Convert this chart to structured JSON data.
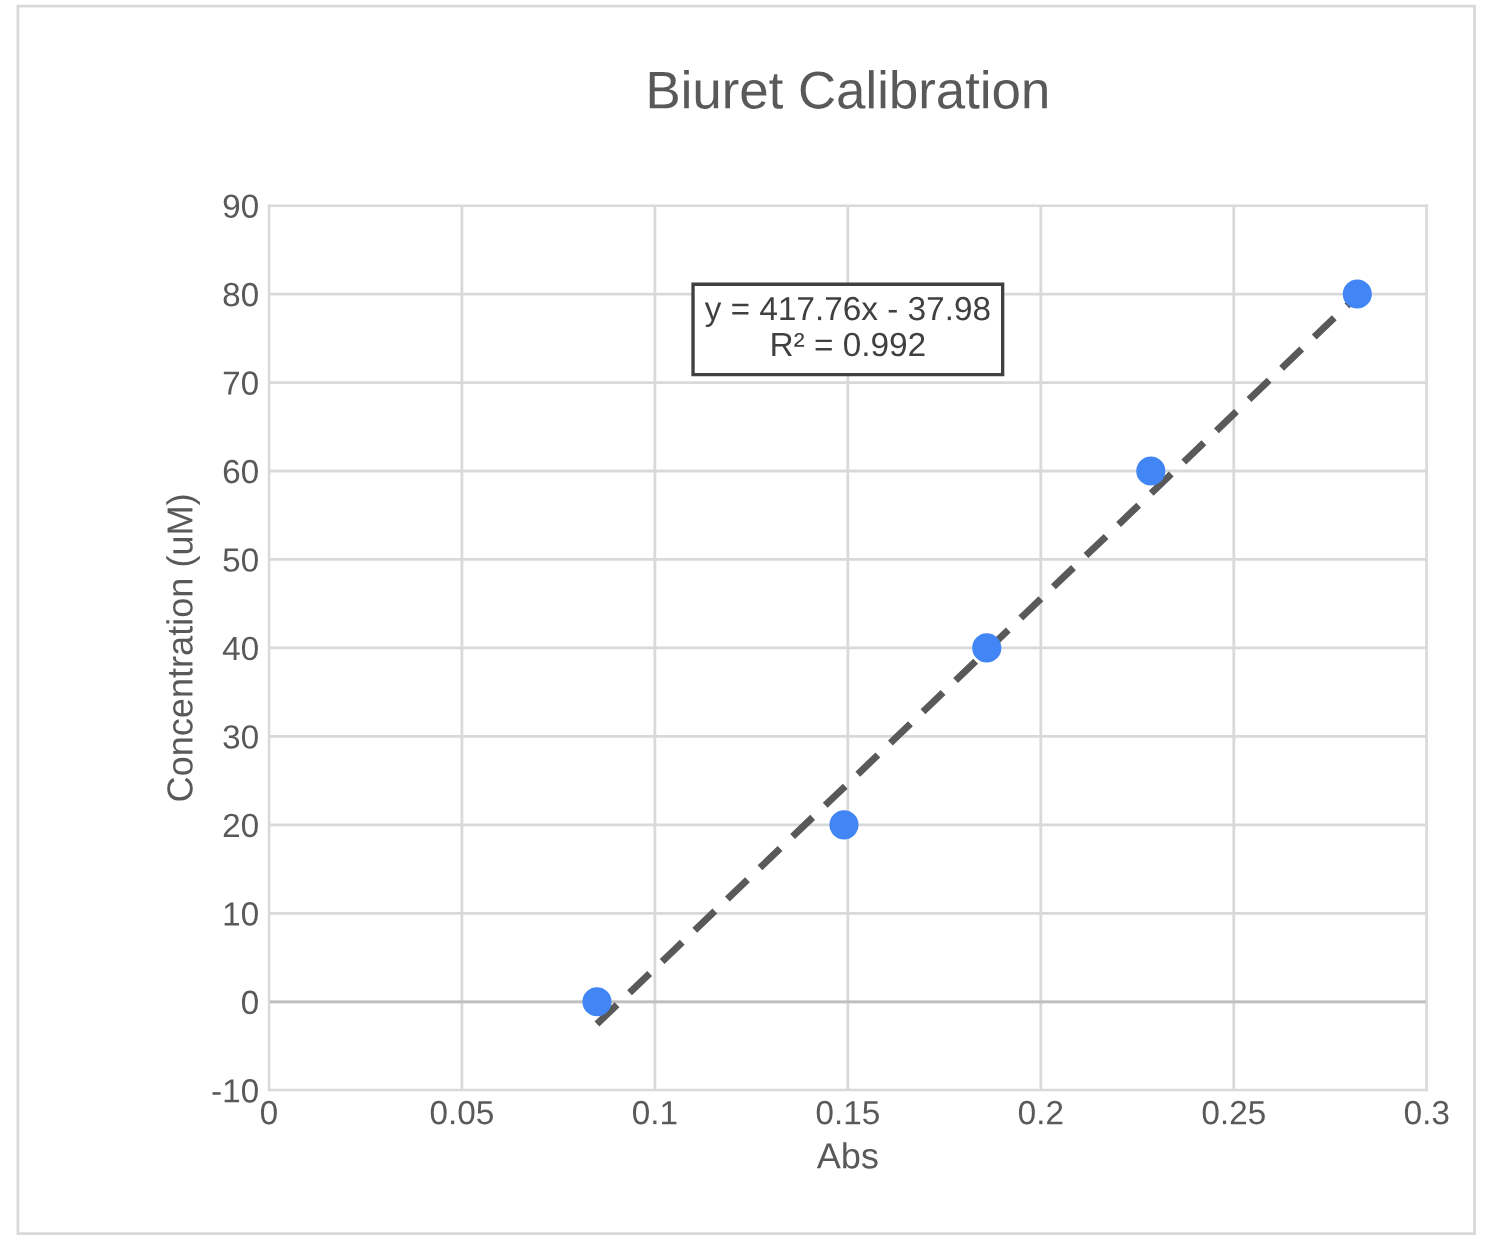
{
  "chart_data": {
    "type": "scatter",
    "title": "Biuret Calibration",
    "xlabel": "Abs",
    "ylabel": "Concentration (uM)",
    "x": [
      0.085,
      0.149,
      0.186,
      0.2285,
      0.282
    ],
    "series": [
      {
        "color": "#4285f4",
        "values": [
          0,
          20,
          40,
          60,
          80
        ],
        "marker": "circle"
      },
      {
        "type": "line",
        "color": "#595959",
        "x": [
          0.085,
          0.282
        ],
        "values": [
          -2.5,
          79.8
        ],
        "line_style": "dashed",
        "marker": "none"
      }
    ],
    "annotations": [
      "y = 417.76x - 37.98\nR² = 0.992"
    ],
    "xlim": [
      0,
      0.3
    ],
    "xticks": [
      0,
      0.05,
      0.1,
      0.15,
      0.2,
      0.25,
      0.3
    ],
    "ylim": [
      -10,
      90
    ],
    "yticks": [
      -10,
      0,
      10,
      20,
      30,
      40,
      50,
      60,
      70,
      80,
      90
    ],
    "grid": true,
    "legend": false
  }
}
